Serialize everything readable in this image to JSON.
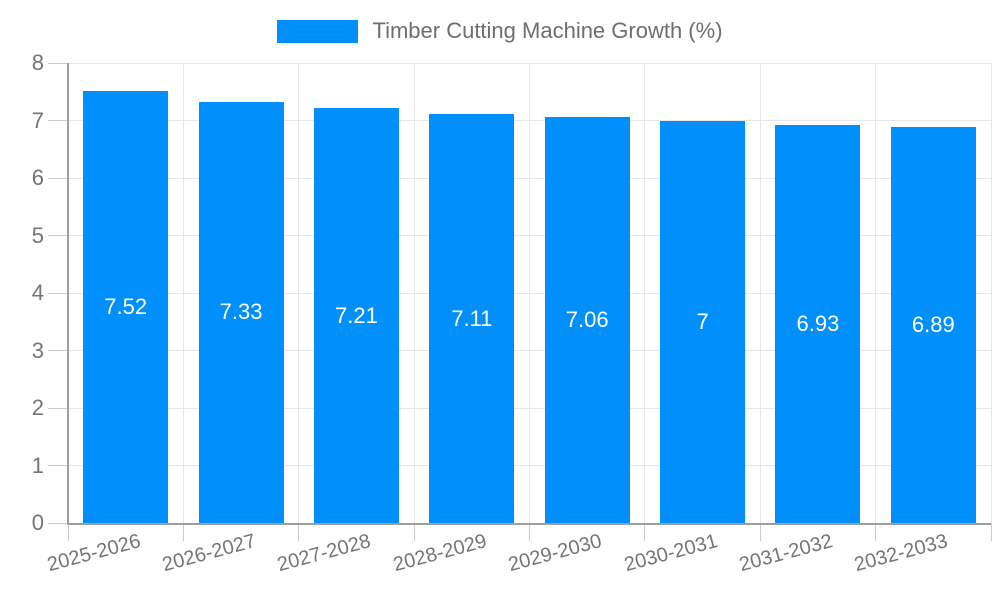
{
  "chart_data": {
    "type": "bar",
    "title": "Timber Cutting Machine Growth (%)",
    "categories": [
      "2025-2026",
      "2026-2027",
      "2027-2028",
      "2028-2029",
      "2029-2030",
      "2030-2031",
      "2031-2032",
      "2032-2033"
    ],
    "series": [
      {
        "name": "Timber Cutting Machine Growth (%)",
        "values": [
          7.52,
          7.33,
          7.21,
          7.11,
          7.06,
          7,
          6.93,
          6.89
        ],
        "labels": [
          "7.52",
          "7.33",
          "7.21",
          "7.11",
          "7.06",
          "7",
          "6.93",
          "6.89"
        ]
      }
    ],
    "xlabel": "",
    "ylabel": "",
    "ylim": [
      0,
      8
    ],
    "yticks": [
      0,
      1,
      2,
      3,
      4,
      5,
      6,
      7,
      8
    ],
    "grid": true,
    "legend_position": "top",
    "bar_label_position": "middle",
    "x_label_rotation_deg": -15,
    "colors": {
      "bar": "#008FFB",
      "bar_label_text": "#FFFFFF",
      "axis_text": "#757575",
      "legend_text": "#6E6E6E",
      "axis_line": "#9E9E9E",
      "tick_line": "#CCCCCC",
      "grid_line": "#E6E6E6",
      "background": "#FFFFFF"
    }
  }
}
